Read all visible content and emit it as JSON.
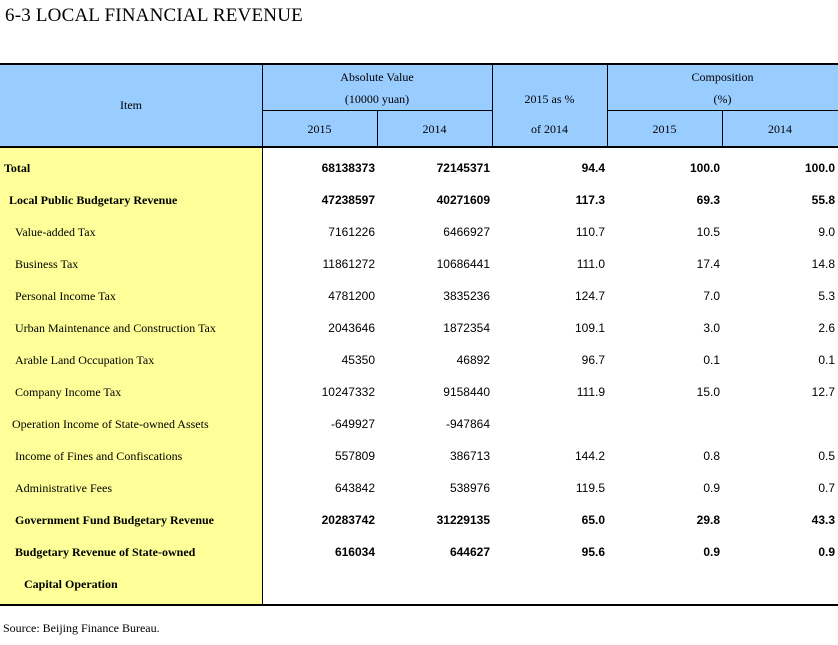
{
  "title": "6-3  LOCAL FINANCIAL REVENUE",
  "header": {
    "item": "Item",
    "absolute_value": "Absolute Value",
    "absolute_unit": "(10000 yuan)",
    "ratio_line1": "2015 as %",
    "ratio_line2": "of 2014",
    "composition": "Composition",
    "composition_unit": "(%)",
    "y2015_a": "2015",
    "y2014_a": "2014",
    "y2015_b": "2015",
    "y2014_b": "2014"
  },
  "rows": [
    {
      "label": "Total",
      "v2015": "68138373",
      "v2014": "72145371",
      "ratio": "94.4",
      "c2015": "100.0",
      "c2014": "100.0"
    },
    {
      "label": "Local Public Budgetary Revenue",
      "v2015": "47238597",
      "v2014": "40271609",
      "ratio": "117.3",
      "c2015": "69.3",
      "c2014": "55.8"
    },
    {
      "label": "Value-added Tax",
      "v2015": "7161226",
      "v2014": "6466927",
      "ratio": "110.7",
      "c2015": "10.5",
      "c2014": "9.0"
    },
    {
      "label": "Business Tax",
      "v2015": "11861272",
      "v2014": "10686441",
      "ratio": "111.0",
      "c2015": "17.4",
      "c2014": "14.8"
    },
    {
      "label": "Personal Income Tax",
      "v2015": "4781200",
      "v2014": "3835236",
      "ratio": "124.7",
      "c2015": "7.0",
      "c2014": "5.3"
    },
    {
      "label": "Urban Maintenance and Construction Tax",
      "v2015": "2043646",
      "v2014": "1872354",
      "ratio": "109.1",
      "c2015": "3.0",
      "c2014": "2.6"
    },
    {
      "label": "Arable Land Occupation Tax",
      "v2015": "45350",
      "v2014": "46892",
      "ratio": "96.7",
      "c2015": "0.1",
      "c2014": "0.1"
    },
    {
      "label": "Company Income Tax",
      "v2015": "10247332",
      "v2014": "9158440",
      "ratio": "111.9",
      "c2015": "15.0",
      "c2014": "12.7"
    },
    {
      "label": "Operation Income of State-owned Assets",
      "v2015": "-649927",
      "v2014": "-947864",
      "ratio": "",
      "c2015": "",
      "c2014": ""
    },
    {
      "label": "Income of Fines and Confiscations",
      "v2015": "557809",
      "v2014": "386713",
      "ratio": "144.2",
      "c2015": "0.8",
      "c2014": "0.5"
    },
    {
      "label": "Administrative Fees",
      "v2015": "643842",
      "v2014": "538976",
      "ratio": "119.5",
      "c2015": "0.9",
      "c2014": "0.7"
    },
    {
      "label": "Government Fund Budgetary Revenue",
      "v2015": "20283742",
      "v2014": "31229135",
      "ratio": "65.0",
      "c2015": "29.8",
      "c2014": "43.3"
    },
    {
      "label": "Budgetary Revenue of State-owned",
      "v2015": "616034",
      "v2014": "644627",
      "ratio": "95.6",
      "c2015": "0.9",
      "c2014": "0.9"
    },
    {
      "label": "Capital Operation",
      "v2015": "",
      "v2014": "",
      "ratio": "",
      "c2015": "",
      "c2014": ""
    }
  ],
  "source": "Source: Beijing Finance Bureau."
}
